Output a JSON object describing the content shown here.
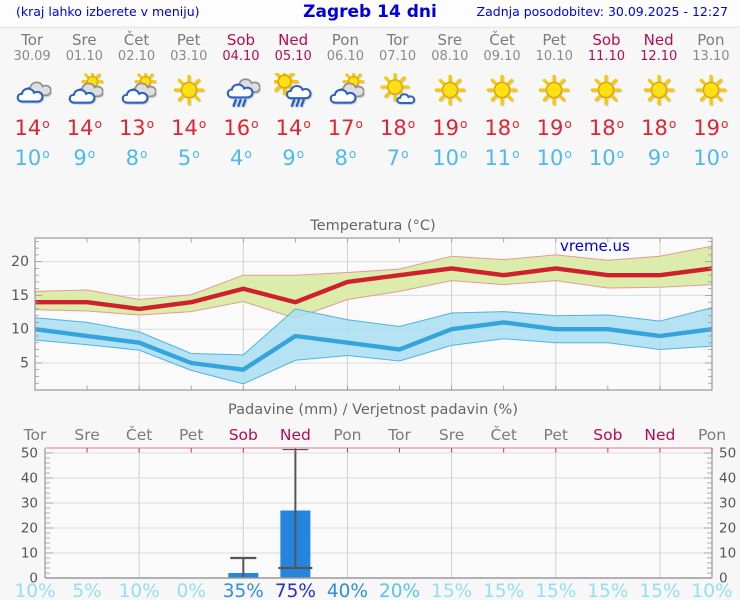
{
  "header": {
    "hint": "(kraj lahko izberete v meniju)",
    "title": "Zagreb 14 dni",
    "updated": "Zadnja posodobitev: 30.09.2025 - 12:27"
  },
  "days": [
    {
      "name": "Tor",
      "date": "30.09",
      "weekend": false,
      "icon": "cloudy",
      "tmax": 14,
      "tmin": 10,
      "pop": 10
    },
    {
      "name": "Sre",
      "date": "01.10",
      "weekend": false,
      "icon": "partly",
      "tmax": 14,
      "tmin": 9,
      "pop": 5
    },
    {
      "name": "Čet",
      "date": "02.10",
      "weekend": false,
      "icon": "partly",
      "tmax": 13,
      "tmin": 8,
      "pop": 10
    },
    {
      "name": "Pet",
      "date": "03.10",
      "weekend": false,
      "icon": "sun",
      "tmax": 14,
      "tmin": 5,
      "pop": 0
    },
    {
      "name": "Sob",
      "date": "04.10",
      "weekend": true,
      "icon": "rain",
      "tmax": 16,
      "tmin": 4,
      "pop": 35
    },
    {
      "name": "Ned",
      "date": "05.10",
      "weekend": true,
      "icon": "sun-rain",
      "tmax": 14,
      "tmin": 9,
      "pop": 75
    },
    {
      "name": "Pon",
      "date": "06.10",
      "weekend": false,
      "icon": "partly",
      "tmax": 17,
      "tmin": 8,
      "pop": 40
    },
    {
      "name": "Tor",
      "date": "07.10",
      "weekend": false,
      "icon": "sun-small-cloud",
      "tmax": 18,
      "tmin": 7,
      "pop": 20
    },
    {
      "name": "Sre",
      "date": "08.10",
      "weekend": false,
      "icon": "sun",
      "tmax": 19,
      "tmin": 10,
      "pop": 15
    },
    {
      "name": "Čet",
      "date": "09.10",
      "weekend": false,
      "icon": "sun",
      "tmax": 18,
      "tmin": 11,
      "pop": 15
    },
    {
      "name": "Pet",
      "date": "10.10",
      "weekend": false,
      "icon": "sun",
      "tmax": 19,
      "tmin": 10,
      "pop": 15
    },
    {
      "name": "Sob",
      "date": "11.10",
      "weekend": true,
      "icon": "sun",
      "tmax": 18,
      "tmin": 10,
      "pop": 15
    },
    {
      "name": "Ned",
      "date": "12.10",
      "weekend": true,
      "icon": "sun",
      "tmax": 18,
      "tmin": 9,
      "pop": 15
    },
    {
      "name": "Pon",
      "date": "13.10",
      "weekend": false,
      "icon": "sun",
      "tmax": 19,
      "tmin": 10,
      "pop": 10
    }
  ],
  "chart_data": [
    {
      "type": "line",
      "title": "Temperatura (°C)",
      "watermark": "vreme.us",
      "categories": [
        "Tor",
        "Sre",
        "Čet",
        "Pet",
        "Sob",
        "Ned",
        "Pon",
        "Tor",
        "Sre",
        "Čet",
        "Pet",
        "Sob",
        "Ned",
        "Pon"
      ],
      "ylim": [
        1,
        23.5
      ],
      "yticks": [
        5,
        10,
        15,
        20
      ],
      "ytick_minor_step": 1,
      "grid_day_indices": [
        2,
        4,
        6,
        8,
        10,
        12
      ],
      "legend_position": "none",
      "series": [
        {
          "name": "max",
          "values": [
            14,
            14,
            13,
            14,
            16,
            14,
            17,
            18,
            19,
            18,
            19,
            18,
            18,
            19
          ]
        },
        {
          "name": "max_upper",
          "values": [
            15.6,
            15.8,
            14.4,
            15.1,
            18,
            18,
            18.4,
            18.9,
            20.8,
            20.3,
            21,
            20.2,
            20.8,
            22.3
          ]
        },
        {
          "name": "max_lower",
          "values": [
            12.9,
            12.7,
            12.1,
            12.6,
            14.1,
            11.6,
            14.4,
            15.6,
            17.2,
            16.6,
            17.2,
            16.1,
            16.2,
            16.6
          ]
        },
        {
          "name": "min",
          "values": [
            10,
            9,
            8,
            5,
            4,
            9,
            8,
            7,
            10,
            11,
            10,
            10,
            9,
            10
          ]
        },
        {
          "name": "min_upper",
          "values": [
            11.7,
            11,
            9.6,
            6.4,
            6.2,
            13,
            11.4,
            10.4,
            12.4,
            12.6,
            12,
            12.1,
            11.2,
            13.2
          ]
        },
        {
          "name": "min_lower",
          "values": [
            8.4,
            7.7,
            6.9,
            3.9,
            1.9,
            5.4,
            6.1,
            5.3,
            7.6,
            8.6,
            8,
            8,
            7,
            7.5
          ]
        }
      ]
    },
    {
      "type": "bar",
      "title": "Padavine (mm) / Verjetnost padavin (%)",
      "categories": [
        "Tor",
        "Sre",
        "Čet",
        "Pet",
        "Sob",
        "Ned",
        "Pon",
        "Tor",
        "Sre",
        "Čet",
        "Pet",
        "Sob",
        "Ned",
        "Pon"
      ],
      "weekend_indices": [
        4,
        5,
        11,
        12
      ],
      "ylim": [
        0,
        52
      ],
      "yticks": [
        0,
        10,
        20,
        30,
        40,
        50
      ],
      "ytick_minor_step": 2,
      "grid_day_indices": [
        2,
        4,
        6,
        8,
        10,
        12
      ],
      "values_mm": [
        0,
        0,
        0,
        0,
        2,
        27,
        0,
        0,
        0,
        0,
        0,
        0,
        0,
        0
      ],
      "whisker_low": [
        null,
        null,
        null,
        null,
        null,
        4,
        null,
        null,
        null,
        null,
        null,
        null,
        null,
        null
      ],
      "whisker_high": [
        null,
        null,
        null,
        null,
        8,
        52,
        null,
        null,
        null,
        null,
        null,
        null,
        null,
        null
      ],
      "probability_pct": [
        10,
        5,
        10,
        0,
        35,
        75,
        40,
        20,
        15,
        15,
        15,
        15,
        15,
        10
      ]
    }
  ],
  "colors": {
    "header_text": "#0000dd",
    "weekday": "#7b7b7b",
    "weekend": "#b30d52",
    "tmax_text": "#e02431",
    "tmin_text": "#4db9ec",
    "temp_max_line": "#cf202d",
    "temp_max_band": "#dcecab",
    "temp_max_band_edge": "#e59a94",
    "temp_min_line": "#35a4dd",
    "temp_min_band": "#a9def1",
    "temp_min_band_edge": "#4fb3e2",
    "bar": "#2585de",
    "whisker": "#555555",
    "grid": "#dcdcdc",
    "vgrid": "#d0d0d0",
    "frame": "#999999",
    "axis_label": "#555555",
    "title": "#666666",
    "watermark": "#0000cc",
    "plot_bg": "#fafafa",
    "precip_top_border": "#f2b6c6",
    "precip_top_tick": "#cc3366",
    "pop_levels": [
      {
        "min": 70,
        "color": "#2531c8"
      },
      {
        "min": 35,
        "color": "#2d8fdb"
      },
      {
        "min": 20,
        "color": "#57c5ec"
      },
      {
        "min": 0,
        "color": "#92dff4"
      }
    ]
  }
}
